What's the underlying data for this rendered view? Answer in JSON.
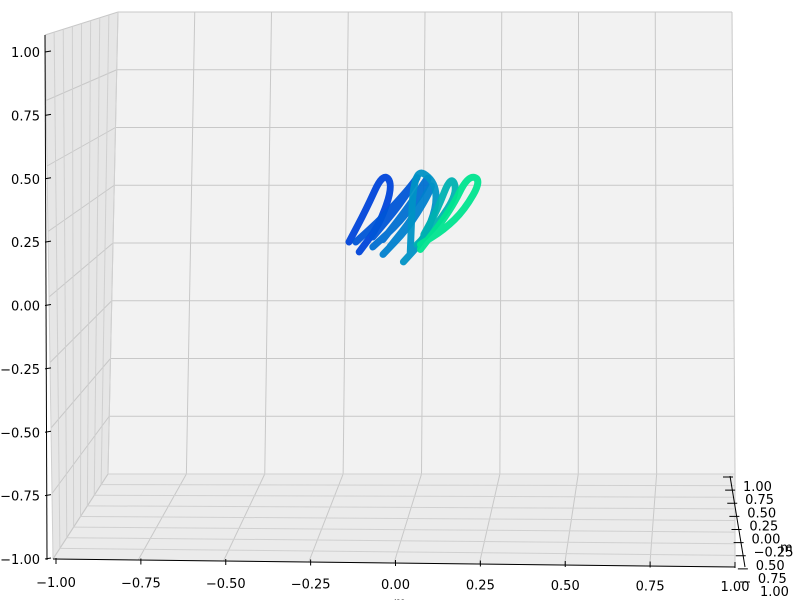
{
  "chart_data": {
    "type": "line3d",
    "title": "",
    "x_axis": {
      "label": "m",
      "range": [
        -1.0,
        1.0
      ],
      "ticks": [
        "−1.00",
        "−0.75",
        "−0.50",
        "−0.25",
        "0.00",
        "0.25",
        "0.50",
        "0.75",
        "1.00"
      ]
    },
    "y_axis": {
      "label": "m",
      "range": [
        -1.0,
        1.0
      ],
      "ticks": [
        "1.00",
        "0.75",
        "0.50",
        "0.25",
        "0.00",
        "−0.25",
        "0.50",
        "0.75",
        "1.00"
      ]
    },
    "z_axis": {
      "label": "",
      "range": [
        -1.0,
        1.0
      ],
      "ticks": [
        "1.00",
        "0.75",
        "0.50",
        "0.25",
        "0.00",
        "−0.25",
        "−0.50",
        "−0.75",
        "−1.00"
      ]
    },
    "grid": true,
    "pane_color": "#f2f2f2",
    "colormap": "winter",
    "colors": {
      "start": "#0033dd",
      "mid": "#0088cc",
      "end": "#00ee88"
    },
    "series": [
      {
        "x": [
          -0.12,
          -0.06,
          -0.02,
          -0.05,
          -0.1,
          -0.15
        ],
        "z": [
          0.21,
          0.32,
          0.48,
          0.53,
          0.38,
          0.25
        ],
        "t": 0.1
      },
      {
        "x": [
          -0.13,
          -0.05,
          0.03,
          0.06,
          0.0,
          -0.08
        ],
        "z": [
          0.25,
          0.35,
          0.47,
          0.53,
          0.4,
          0.27
        ],
        "t": 0.2
      },
      {
        "x": [
          -0.08,
          0.0,
          0.07,
          0.09,
          0.03,
          -0.05
        ],
        "z": [
          0.23,
          0.33,
          0.46,
          0.53,
          0.4,
          0.26
        ],
        "t": 0.35
      },
      {
        "x": [
          -0.05,
          0.02,
          0.08,
          0.1,
          0.04,
          -0.03
        ],
        "z": [
          0.2,
          0.3,
          0.43,
          0.5,
          0.35,
          0.23
        ],
        "t": 0.45
      },
      {
        "x": [
          0.01,
          0.07,
          0.11,
          0.1,
          0.04,
          0.03
        ],
        "z": [
          0.17,
          0.26,
          0.4,
          0.5,
          0.55,
          0.2
        ],
        "t": 0.55
      },
      {
        "x": [
          0.05,
          0.11,
          0.17,
          0.15,
          0.11,
          0.07
        ],
        "z": [
          0.24,
          0.32,
          0.45,
          0.52,
          0.38,
          0.28
        ],
        "t": 0.7
      },
      {
        "x": [
          0.06,
          0.13,
          0.19,
          0.24,
          0.2,
          0.15,
          0.06
        ],
        "z": [
          0.24,
          0.3,
          0.38,
          0.5,
          0.52,
          0.38,
          0.22
        ],
        "t": 0.95
      }
    ]
  }
}
